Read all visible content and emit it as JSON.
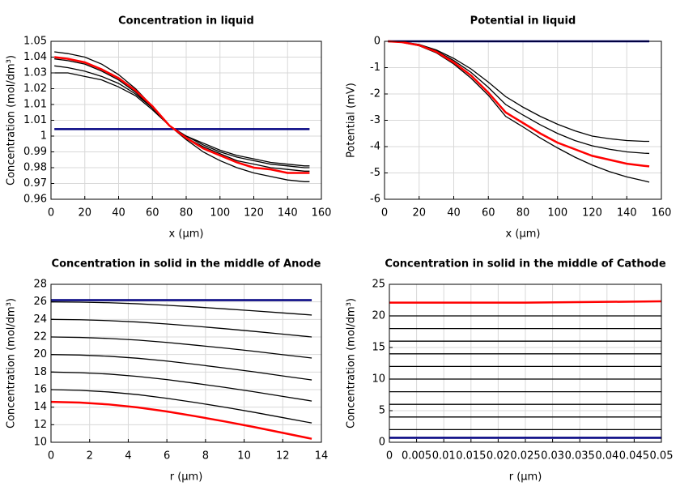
{
  "chart_data": [
    {
      "type": "line",
      "title": "Concentration in liquid",
      "xlabel": "x (µm)",
      "ylabel": "Concentration (mol/dm³)",
      "xlim": [
        0,
        160
      ],
      "xticks": [
        0,
        20,
        40,
        60,
        80,
        100,
        120,
        140,
        160
      ],
      "ylim": [
        0.96,
        1.05
      ],
      "yticks": [
        {
          "value": 0.96,
          "label": "0.96"
        },
        {
          "value": 0.969,
          "label": "0.97"
        },
        {
          "value": 0.978,
          "label": "0.98"
        },
        {
          "value": 0.987,
          "label": "0.99"
        },
        {
          "value": 0.996,
          "label": "1"
        },
        {
          "value": 1.005,
          "label": "1.01"
        },
        {
          "value": 1.014,
          "label": "1.01"
        },
        {
          "value": 1.023,
          "label": "1.02"
        },
        {
          "value": 1.032,
          "label": "1.03"
        },
        {
          "value": 1.041,
          "label": "1.04"
        },
        {
          "value": 1.05,
          "label": "1.05"
        }
      ],
      "grid": true,
      "x": [
        2,
        10,
        20,
        30,
        40,
        50,
        60,
        70,
        80,
        90,
        100,
        110,
        120,
        130,
        140,
        150,
        153
      ],
      "series": [
        {
          "color": "#000000",
          "values": [
            1.044,
            1.043,
            1.041,
            1.037,
            1.031,
            1.023,
            1.013,
            1.002,
            0.994,
            0.987,
            0.982,
            0.978,
            0.975,
            0.973,
            0.971,
            0.97,
            0.97
          ]
        },
        {
          "color": "#000000",
          "values": [
            1.04,
            1.039,
            1.037,
            1.033,
            1.028,
            1.021,
            1.012,
            1.002,
            0.995,
            0.99,
            0.986,
            0.982,
            0.98,
            0.978,
            0.977,
            0.976,
            0.976
          ]
        },
        {
          "color": "#000000",
          "values": [
            1.036,
            1.035,
            1.033,
            1.03,
            1.026,
            1.02,
            1.012,
            1.002,
            0.996,
            0.991,
            0.987,
            0.984,
            0.982,
            0.98,
            0.979,
            0.978,
            0.978
          ]
        },
        {
          "color": "#000000",
          "values": [
            1.032,
            1.032,
            1.03,
            1.028,
            1.024,
            1.019,
            1.011,
            1.002,
            0.996,
            0.992,
            0.988,
            0.985,
            0.983,
            0.981,
            0.98,
            0.979,
            0.979
          ]
        },
        {
          "color": "#000080",
          "values": [
            1,
            1,
            1,
            1,
            1,
            1,
            1,
            1,
            1,
            1,
            1,
            1,
            1,
            1,
            1,
            1,
            1
          ]
        },
        {
          "color": "#ff0000",
          "values": [
            1.041,
            1.04,
            1.038,
            1.034,
            1.029,
            1.022,
            1.013,
            1.002,
            0.995,
            0.989,
            0.985,
            0.981,
            0.978,
            0.977,
            0.975,
            0.975,
            0.975
          ]
        }
      ]
    },
    {
      "type": "line",
      "title": "Potential in liquid",
      "xlabel": "x (µm)",
      "ylabel": "Potential (mV)",
      "xlim": [
        0,
        160
      ],
      "xticks": [
        0,
        20,
        40,
        60,
        80,
        100,
        120,
        140,
        160
      ],
      "ylim": [
        -6,
        0
      ],
      "yticks": [
        -6,
        -5,
        -4,
        -3,
        -2,
        -1,
        0
      ],
      "grid": true,
      "x": [
        2,
        10,
        20,
        30,
        40,
        50,
        60,
        70,
        80,
        90,
        100,
        110,
        120,
        130,
        140,
        150,
        153
      ],
      "series": [
        {
          "color": "#000000",
          "values": [
            0,
            -0.02,
            -0.12,
            -0.33,
            -0.65,
            -1.05,
            -1.55,
            -2.1,
            -2.5,
            -2.85,
            -3.15,
            -3.4,
            -3.6,
            -3.7,
            -3.77,
            -3.8,
            -3.8
          ]
        },
        {
          "color": "#000000",
          "values": [
            0,
            -0.03,
            -0.14,
            -0.37,
            -0.73,
            -1.18,
            -1.75,
            -2.4,
            -2.8,
            -3.17,
            -3.5,
            -3.77,
            -3.97,
            -4.1,
            -4.2,
            -4.25,
            -4.26
          ]
        },
        {
          "color": "#000000",
          "values": [
            0,
            -0.04,
            -0.17,
            -0.44,
            -0.86,
            -1.4,
            -2.05,
            -2.85,
            -3.25,
            -3.67,
            -4.05,
            -4.4,
            -4.7,
            -4.95,
            -5.15,
            -5.3,
            -5.35
          ]
        },
        {
          "color": "#000080",
          "values": [
            0,
            0,
            0,
            0,
            0,
            0,
            0,
            0,
            0,
            0,
            0,
            0,
            0,
            0,
            0,
            0,
            0
          ]
        },
        {
          "color": "#ff0000",
          "values": [
            0,
            -0.03,
            -0.15,
            -0.4,
            -0.8,
            -1.3,
            -1.95,
            -2.7,
            -3.1,
            -3.5,
            -3.85,
            -4.1,
            -4.35,
            -4.5,
            -4.65,
            -4.73,
            -4.75
          ]
        }
      ]
    },
    {
      "type": "line",
      "title": "Concentration in solid in the middle of Anode",
      "xlabel": "r (µm)",
      "ylabel": "Concentration (mol/dm³)",
      "xlim": [
        0,
        14
      ],
      "xticks": [
        0,
        2,
        4,
        6,
        8,
        10,
        12,
        14
      ],
      "ylim": [
        10,
        28
      ],
      "yticks": [
        10,
        12,
        14,
        16,
        18,
        20,
        22,
        24,
        26,
        28
      ],
      "grid": true,
      "x": [
        0,
        1.5,
        3,
        4.5,
        6,
        7.5,
        9,
        10.5,
        12,
        13.5
      ],
      "series": [
        {
          "color": "#000000",
          "values": [
            26,
            25.97,
            25.9,
            25.78,
            25.61,
            25.42,
            25.2,
            24.98,
            24.74,
            24.5
          ]
        },
        {
          "color": "#000000",
          "values": [
            24,
            23.96,
            23.86,
            23.7,
            23.48,
            23.22,
            22.94,
            22.64,
            22.32,
            22
          ]
        },
        {
          "color": "#000000",
          "values": [
            22,
            21.95,
            21.83,
            21.64,
            21.38,
            21.06,
            20.73,
            20.37,
            19.98,
            19.6
          ]
        },
        {
          "color": "#000000",
          "values": [
            20,
            19.94,
            19.8,
            19.57,
            19.25,
            18.87,
            18.46,
            18.03,
            17.56,
            17.1
          ]
        },
        {
          "color": "#000000",
          "values": [
            18,
            17.93,
            17.77,
            17.5,
            17.14,
            16.71,
            16.25,
            15.76,
            15.23,
            14.7
          ]
        },
        {
          "color": "#000000",
          "values": [
            16,
            15.92,
            15.73,
            15.43,
            15.01,
            14.52,
            13.99,
            13.42,
            12.81,
            12.2
          ]
        },
        {
          "color": "#000080",
          "values": [
            26.2,
            26.2,
            26.2,
            26.2,
            26.2,
            26.2,
            26.2,
            26.2,
            26.2,
            26.2
          ]
        },
        {
          "color": "#ff0000",
          "values": [
            14.6,
            14.52,
            14.31,
            13.97,
            13.51,
            12.96,
            12.37,
            11.74,
            11.07,
            10.4
          ]
        }
      ]
    },
    {
      "type": "line",
      "title": "Concentration in solid in the middle of Cathode",
      "xlabel": "r (µm)",
      "ylabel": "Concentration (mol/dm³)",
      "xlim": [
        0,
        0.05
      ],
      "xticks": [
        0,
        0.005,
        0.01,
        0.015,
        0.02,
        0.025,
        0.03,
        0.035,
        0.04,
        0.045,
        0.05
      ],
      "ylim": [
        0,
        25
      ],
      "yticks": [
        0,
        5,
        10,
        15,
        20,
        25
      ],
      "grid": true,
      "x": [
        0,
        0.025,
        0.05
      ],
      "series": [
        {
          "color": "#000000",
          "values": [
            2,
            2,
            2
          ]
        },
        {
          "color": "#000000",
          "values": [
            4,
            4,
            4
          ]
        },
        {
          "color": "#000000",
          "values": [
            6,
            6,
            6
          ]
        },
        {
          "color": "#000000",
          "values": [
            8,
            8,
            8
          ]
        },
        {
          "color": "#000000",
          "values": [
            10,
            10,
            10
          ]
        },
        {
          "color": "#000000",
          "values": [
            12,
            12,
            12
          ]
        },
        {
          "color": "#000000",
          "values": [
            14,
            14,
            14
          ]
        },
        {
          "color": "#000000",
          "values": [
            16,
            16,
            16
          ]
        },
        {
          "color": "#000000",
          "values": [
            18,
            18,
            18
          ]
        },
        {
          "color": "#000000",
          "values": [
            20,
            20,
            20
          ]
        },
        {
          "color": "#000080",
          "values": [
            0.7,
            0.7,
            0.7
          ]
        },
        {
          "color": "#ff0000",
          "values": [
            22.1,
            22.1,
            22.3
          ]
        }
      ]
    }
  ]
}
